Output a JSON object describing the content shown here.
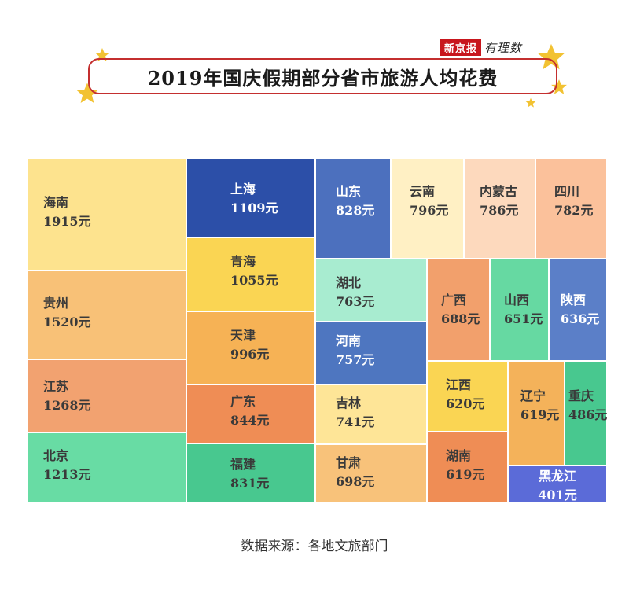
{
  "brand": {
    "name": "新京报",
    "tag": "有理数"
  },
  "title": "2019年国庆假期部分省市旅游人均花费",
  "source": "数据来源：各地文旅部门",
  "colors": {
    "title_border": "#c42f2f",
    "star": "#f2c232",
    "brand_red": "#c8161d"
  },
  "chart_data": {
    "type": "treemap",
    "title": "2019年国庆假期部分省市旅游人均花费",
    "unit": "元",
    "items": [
      {
        "name": "海南",
        "value": 1915,
        "label": "1915元",
        "color": "#fde38e"
      },
      {
        "name": "贵州",
        "value": 1520,
        "label": "1520元",
        "color": "#f8c177"
      },
      {
        "name": "江苏",
        "value": 1268,
        "label": "1268元",
        "color": "#f2a270"
      },
      {
        "name": "北京",
        "value": 1213,
        "label": "1213元",
        "color": "#68dca4"
      },
      {
        "name": "上海",
        "value": 1109,
        "label": "1109元",
        "color": "#2c4fa8"
      },
      {
        "name": "青海",
        "value": 1055,
        "label": "1055元",
        "color": "#fad553"
      },
      {
        "name": "天津",
        "value": 996,
        "label": "996元",
        "color": "#f6b255"
      },
      {
        "name": "广东",
        "value": 844,
        "label": "844元",
        "color": "#ef8d55"
      },
      {
        "name": "福建",
        "value": 831,
        "label": "831元",
        "color": "#48c88f"
      },
      {
        "name": "山东",
        "value": 828,
        "label": "828元",
        "color": "#4c70be"
      },
      {
        "name": "云南",
        "value": 796,
        "label": "796元",
        "color": "#fff0c4"
      },
      {
        "name": "内蒙古",
        "value": 786,
        "label": "786元",
        "color": "#fdd9bd"
      },
      {
        "name": "四川",
        "value": 782,
        "label": "782元",
        "color": "#fbc19b"
      },
      {
        "name": "湖北",
        "value": 763,
        "label": "763元",
        "color": "#a8ecd0"
      },
      {
        "name": "河南",
        "value": 757,
        "label": "757元",
        "color": "#4e76c0"
      },
      {
        "name": "吉林",
        "value": 741,
        "label": "741元",
        "color": "#fee597"
      },
      {
        "name": "甘肃",
        "value": 698,
        "label": "698元",
        "color": "#f8c27a"
      },
      {
        "name": "广西",
        "value": 688,
        "label": "688元",
        "color": "#f2a06c"
      },
      {
        "name": "山西",
        "value": 651,
        "label": "651元",
        "color": "#66d9a2"
      },
      {
        "name": "陕西",
        "value": 636,
        "label": "636元",
        "color": "#5b7fc8"
      },
      {
        "name": "江西",
        "value": 620,
        "label": "620元",
        "color": "#fad553"
      },
      {
        "name": "湖南",
        "value": 619,
        "label": "619元",
        "color": "#ef8d55"
      },
      {
        "name": "辽宁",
        "value": 619,
        "label": "619元",
        "color": "#f4b25a"
      },
      {
        "name": "重庆",
        "value": 486,
        "label": "486元",
        "color": "#48c88f"
      },
      {
        "name": "黑龙江",
        "value": 401,
        "label": "401元",
        "color": "#5b6bd8"
      }
    ]
  }
}
